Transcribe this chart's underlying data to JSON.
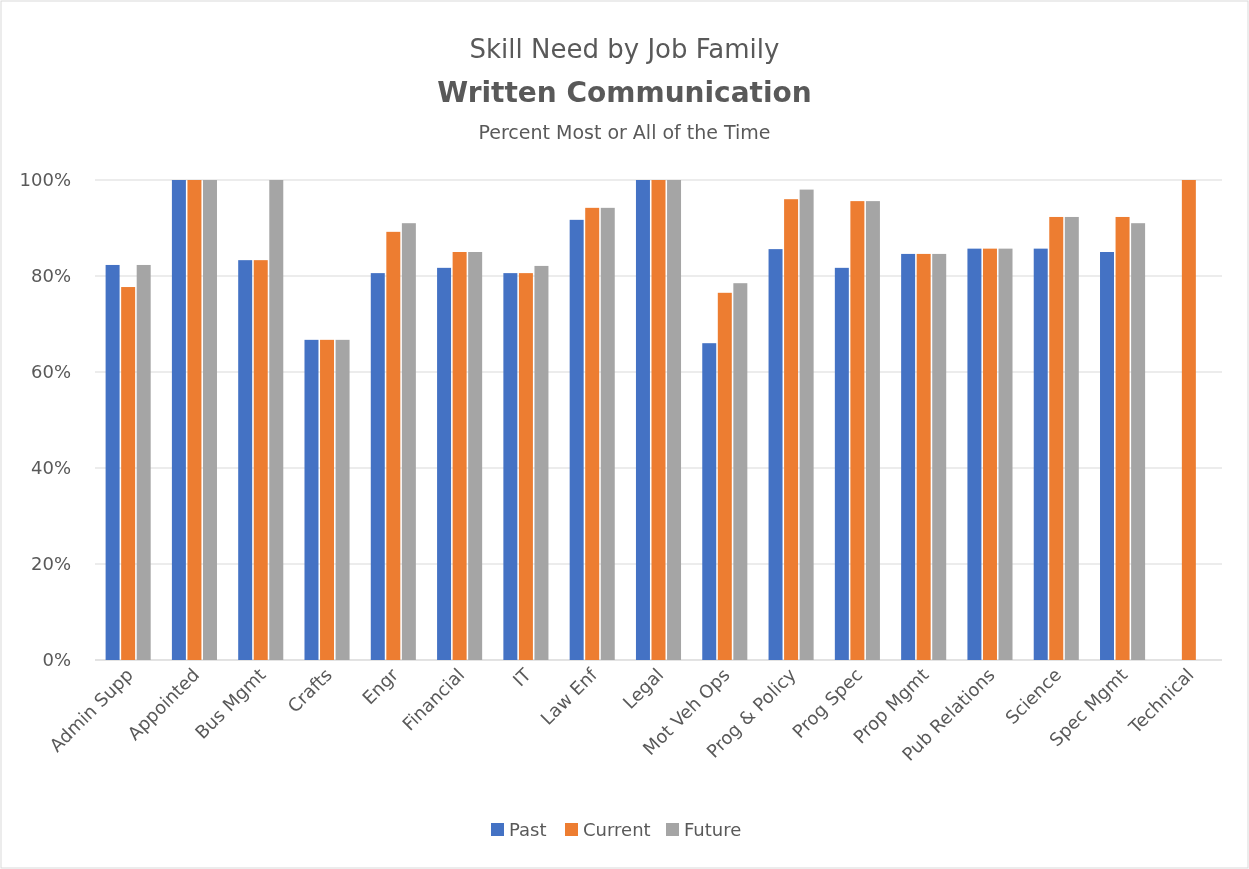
{
  "chart_data": {
    "type": "bar",
    "title": "Skill Need by Job Family",
    "subtitle": "Written Communication",
    "annotations": [
      "Percent Most or All of the Time"
    ],
    "categories": [
      "Admin Supp",
      "Appointed",
      "Bus Mgmt",
      "Crafts",
      "Engr",
      "Financial",
      "IT",
      "Law Enf",
      "Legal",
      "Mot Veh Ops",
      "Prog & Policy",
      "Prog Spec",
      "Prop Mgmt",
      "Pub Relations",
      "Science",
      "Spec Mgmt",
      "Technical"
    ],
    "series": [
      {
        "name": "Past",
        "color": "#4472c4",
        "values": [
          82.3,
          100,
          83.3,
          66.7,
          80.6,
          81.7,
          80.6,
          91.7,
          100,
          66,
          85.6,
          81.7,
          84.6,
          85.7,
          85.7,
          85,
          null
        ]
      },
      {
        "name": "Current",
        "color": "#ed7d31",
        "values": [
          77.7,
          100,
          83.3,
          66.7,
          89.2,
          85,
          80.6,
          94.2,
          100,
          76.5,
          96,
          95.6,
          84.6,
          85.7,
          92.3,
          92.3,
          100
        ]
      },
      {
        "name": "Future",
        "color": "#a5a5a5",
        "values": [
          82.3,
          100,
          100,
          66.7,
          91,
          85,
          82.1,
          94.2,
          100,
          78.5,
          98,
          95.6,
          84.6,
          85.7,
          92.3,
          91,
          null
        ]
      }
    ],
    "ylim": [
      0,
      100
    ],
    "yticks": [
      {
        "value": 0,
        "label": "0%"
      },
      {
        "value": 20,
        "label": "20%"
      },
      {
        "value": 40,
        "label": "40%"
      },
      {
        "value": 60,
        "label": "60%"
      },
      {
        "value": 80,
        "label": "80%"
      },
      {
        "value": 100,
        "label": "100%"
      }
    ],
    "grid": "y",
    "legend": "bottom"
  }
}
